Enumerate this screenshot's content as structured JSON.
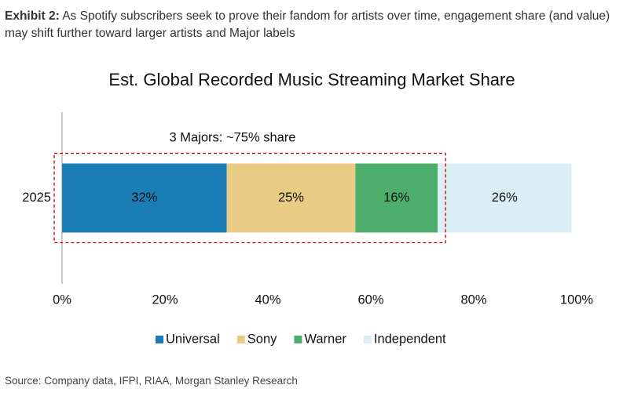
{
  "header": {
    "label": "Exhibit 2:",
    "text": "As Spotify subscribers seek to prove their fandom for artists over time, engagement share (and value) may shift further toward larger artists and Major labels"
  },
  "chart_data": {
    "type": "stacked-bar-horizontal",
    "title": "Est. Global Recorded Music Streaming Market Share",
    "annotation": "3 Majors: ~75% share",
    "categories": [
      "2025"
    ],
    "series": [
      {
        "name": "Universal",
        "color": "#1a7db5",
        "values": [
          32
        ],
        "value_labels": [
          "32%"
        ]
      },
      {
        "name": "Sony",
        "color": "#e9cc84",
        "values": [
          25
        ],
        "value_labels": [
          "25%"
        ]
      },
      {
        "name": "Warner",
        "color": "#4cae6a",
        "values": [
          16
        ],
        "value_labels": [
          "16%"
        ]
      },
      {
        "name": "Independent",
        "color": "#dbeef4",
        "values": [
          26
        ],
        "value_labels": [
          "26%"
        ]
      }
    ],
    "xlim": [
      0,
      100
    ],
    "xticks": [
      {
        "value": 0,
        "label": "0%"
      },
      {
        "value": 20,
        "label": "20%"
      },
      {
        "value": 40,
        "label": "40%"
      },
      {
        "value": 60,
        "label": "60%"
      },
      {
        "value": 80,
        "label": "80%"
      },
      {
        "value": 100,
        "label": "100%"
      }
    ],
    "legend": "bottom"
  },
  "source": "Source: Company data, IFPI, RIAA, Morgan Stanley Research"
}
